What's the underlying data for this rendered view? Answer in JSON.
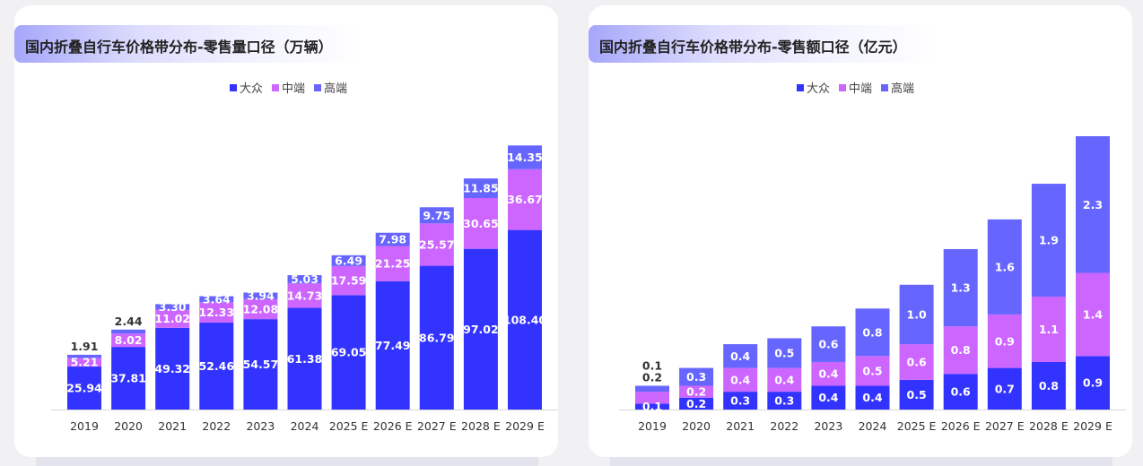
{
  "colors": {
    "mass": "#3333ff",
    "mid": "#cc66ff",
    "high": "#6666ff"
  },
  "chart_data": [
    {
      "type": "bar",
      "stacked": true,
      "title": "国内折叠自行车价格带分布-零售量口径（万辆）",
      "categories": [
        "2019",
        "2020",
        "2021",
        "2022",
        "2023",
        "2024",
        "2025 E",
        "2026 E",
        "2027 E",
        "2028 E",
        "2029 E"
      ],
      "series": [
        {
          "name": "大众",
          "values": [
            25.94,
            37.81,
            49.32,
            52.46,
            54.57,
            61.38,
            69.05,
            77.49,
            86.79,
            97.02,
            108.4
          ]
        },
        {
          "name": "中端",
          "values": [
            5.21,
            8.02,
            11.02,
            12.33,
            12.08,
            14.73,
            17.59,
            21.25,
            25.57,
            30.65,
            36.67
          ]
        },
        {
          "name": "高端",
          "values": [
            1.91,
            2.44,
            3.3,
            3.64,
            3.94,
            5.03,
            6.49,
            7.98,
            9.75,
            11.85,
            14.35
          ]
        }
      ],
      "legend": "top-center",
      "grid": false,
      "ylim": [
        0,
        165
      ]
    },
    {
      "type": "bar",
      "stacked": true,
      "title": "国内折叠自行车价格带分布-零售额口径（亿元）",
      "categories": [
        "2019",
        "2020",
        "2021",
        "2022",
        "2023",
        "2024",
        "2025 E",
        "2026 E",
        "2027 E",
        "2028 E",
        "2029 E"
      ],
      "series": [
        {
          "name": "大众",
          "values": [
            0.1,
            0.2,
            0.3,
            0.3,
            0.4,
            0.4,
            0.5,
            0.6,
            0.7,
            0.8,
            0.9
          ]
        },
        {
          "name": "中端",
          "values": [
            0.2,
            0.2,
            0.4,
            0.4,
            0.4,
            0.5,
            0.6,
            0.8,
            0.9,
            1.1,
            1.4
          ]
        },
        {
          "name": "高端",
          "values": [
            0.1,
            0.3,
            0.4,
            0.5,
            0.6,
            0.8,
            1.0,
            1.3,
            1.6,
            1.9,
            2.3
          ]
        }
      ],
      "legend": "top-center",
      "grid": false,
      "ylim": [
        0,
        4.6
      ]
    }
  ]
}
